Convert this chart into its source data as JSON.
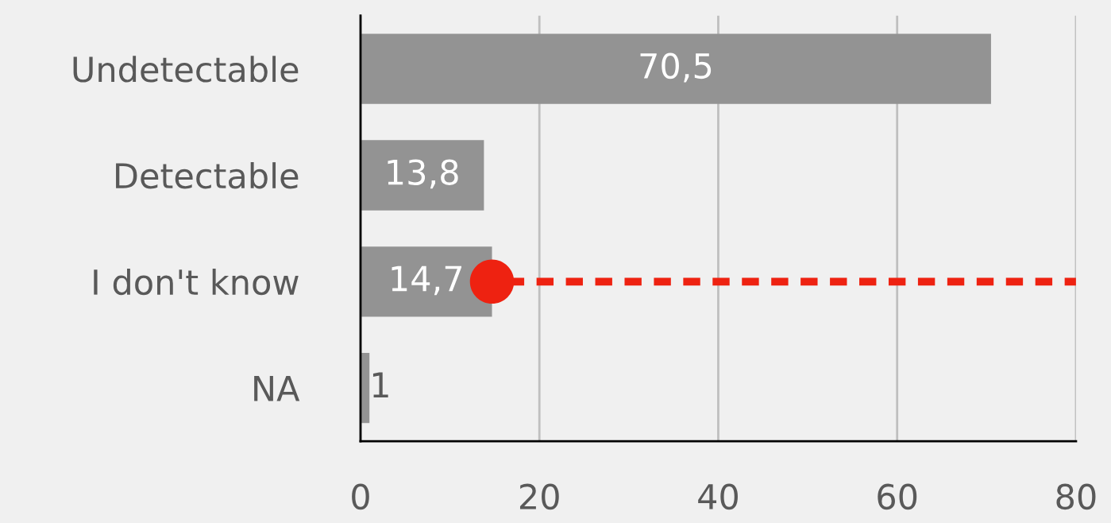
{
  "chart_data": {
    "type": "bar",
    "orientation": "horizontal",
    "categories": [
      "Undetectable",
      "Detectable",
      "I don't know",
      "NA"
    ],
    "series": [
      {
        "color": "#939393",
        "values": [
          70.5,
          13.8,
          14.7,
          1
        ],
        "value_labels": [
          "70,5",
          "13,8",
          "14,7",
          "1"
        ]
      },
      {
        "type": "scatter",
        "color": "#ee2211",
        "values": [
          null,
          null,
          14.7,
          null
        ],
        "marker": "circle"
      }
    ],
    "ref_lines": [
      {
        "axis": "y",
        "value": "I don't know",
        "color": "#ee2211",
        "line_style": "dashed"
      }
    ],
    "xlim": [
      0,
      80
    ],
    "xticks": [
      0,
      20,
      40,
      60,
      80
    ],
    "grid": "x",
    "legend": false
  }
}
